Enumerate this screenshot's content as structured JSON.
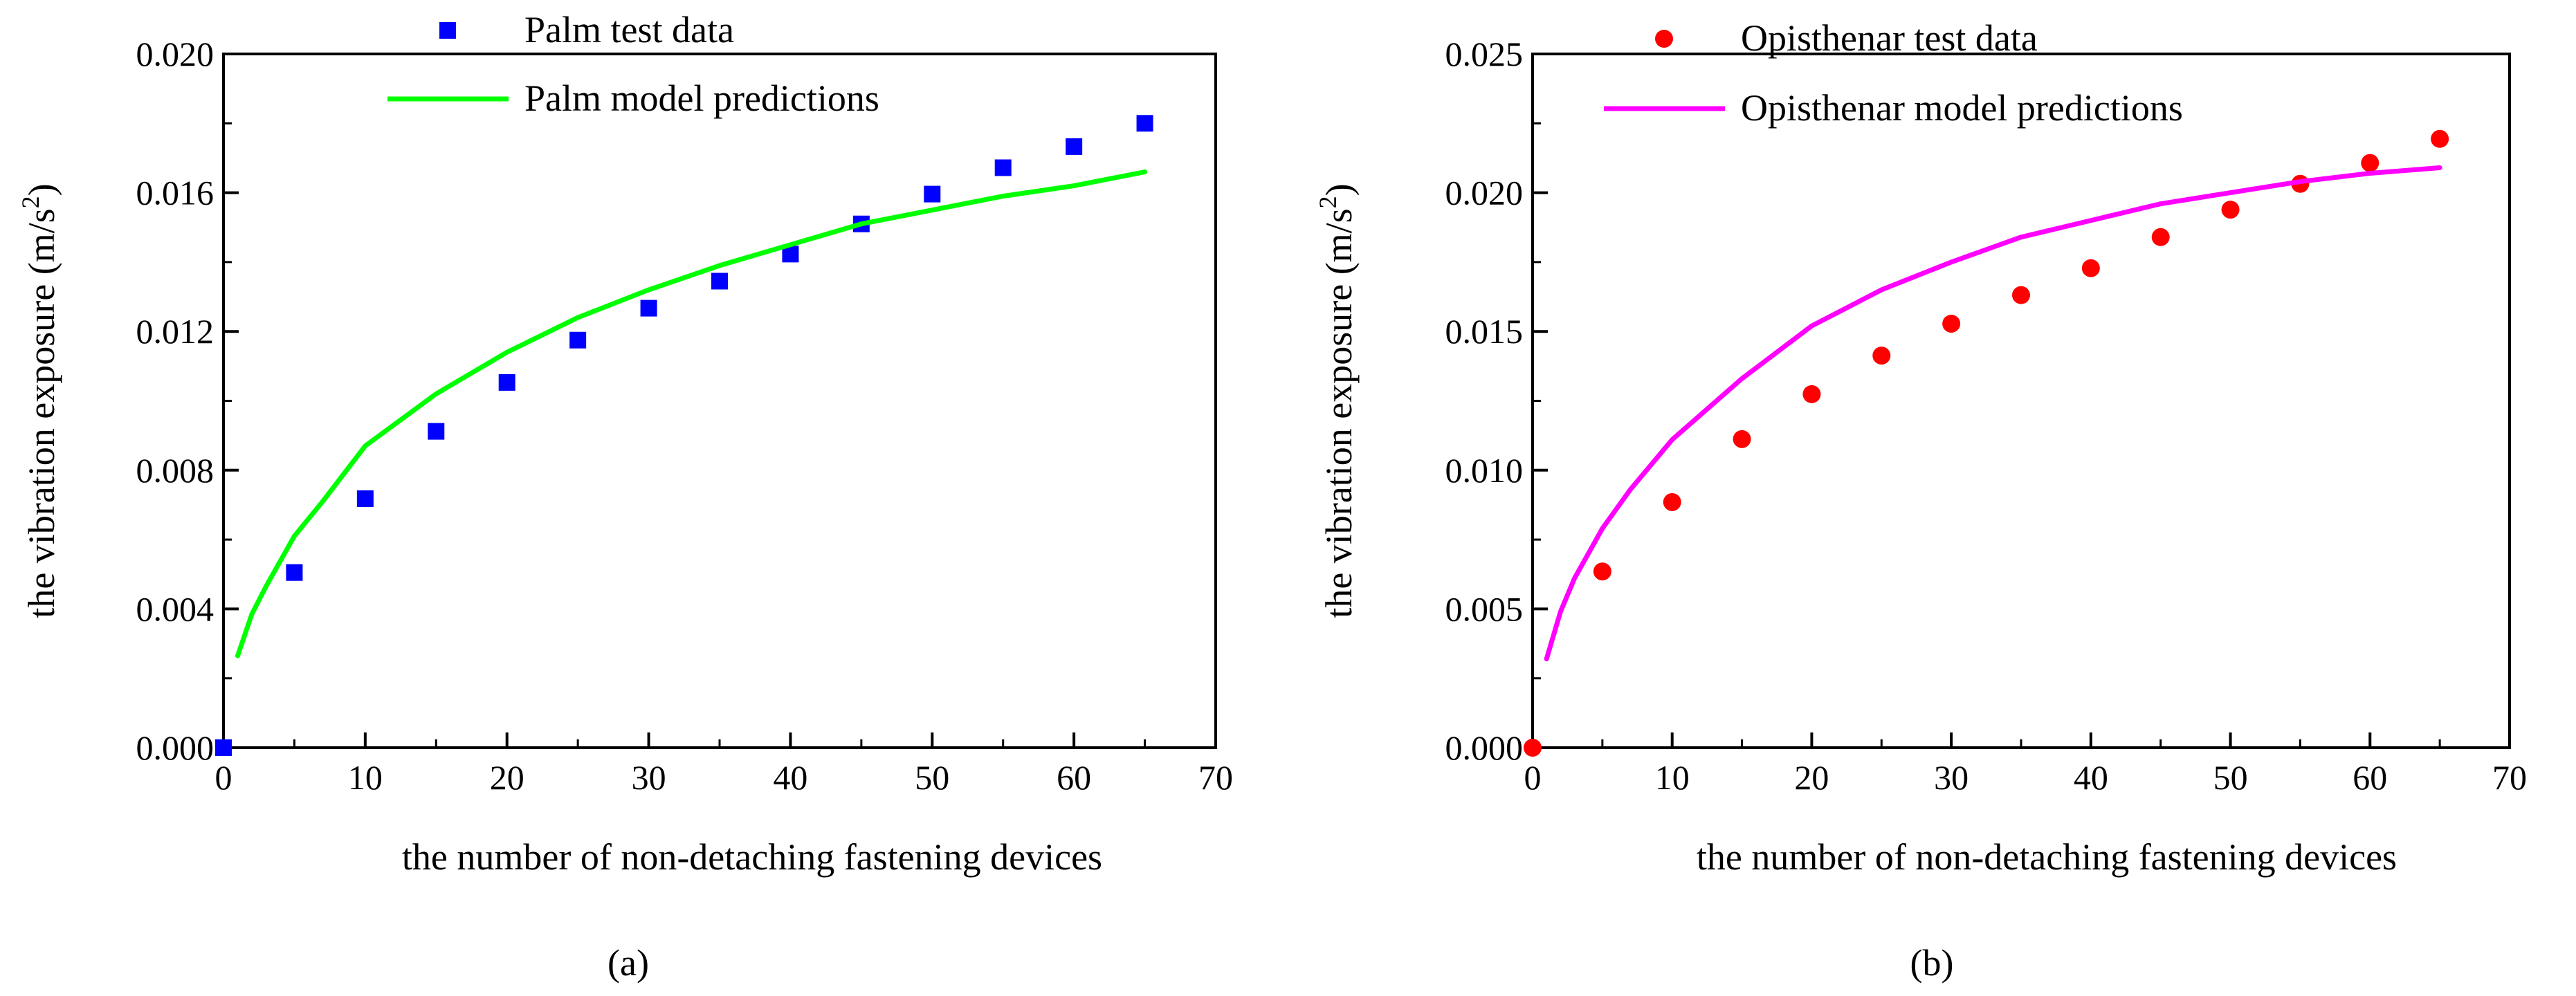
{
  "chart_data": [
    {
      "type": "scatter",
      "panel_label": "(a)",
      "xlabel": "the number of non-detaching fastening devices",
      "ylabel": "the vibration exposure (m/s",
      "ylabel_sup": "2",
      "ylabel_tail": ")",
      "xlim": [
        0,
        70
      ],
      "ylim": [
        0.0,
        0.02
      ],
      "x_ticks": [
        0,
        10,
        20,
        30,
        40,
        50,
        60,
        70
      ],
      "x_tick_labels": [
        "0",
        "10",
        "20",
        "30",
        "40",
        "50",
        "60",
        "70"
      ],
      "y_ticks": [
        0.0,
        0.004,
        0.008,
        0.012,
        0.016,
        0.02
      ],
      "y_tick_labels": [
        "0.000",
        "0.004",
        "0.008",
        "0.012",
        "0.016",
        "0.020"
      ],
      "legend_position": "top",
      "series": [
        {
          "name": "Palm test data",
          "kind": "points",
          "marker": "square",
          "color": "#0000ff",
          "x": [
            0,
            5,
            10,
            15,
            20,
            25,
            30,
            35,
            40,
            45,
            50,
            55,
            60,
            65
          ],
          "y": [
            0.0,
            0.00505,
            0.00718,
            0.00912,
            0.01053,
            0.01175,
            0.01267,
            0.01345,
            0.01423,
            0.0151,
            0.01596,
            0.01672,
            0.01733,
            0.018
          ]
        },
        {
          "name": "Palm model predictions",
          "kind": "line",
          "color": "#00ff00",
          "x": [
            1,
            2,
            3,
            5,
            7,
            10,
            15,
            20,
            25,
            30,
            35,
            40,
            45,
            50,
            55,
            60,
            65
          ],
          "y": [
            0.00265,
            0.00385,
            0.00465,
            0.0061,
            0.0071,
            0.0087,
            0.0102,
            0.0114,
            0.0124,
            0.0132,
            0.0139,
            0.0145,
            0.0151,
            0.0155,
            0.0159,
            0.0162,
            0.0166
          ]
        }
      ]
    },
    {
      "type": "scatter",
      "panel_label": "(b)",
      "xlabel": "the number of non-detaching fastening devices",
      "ylabel": "the vibration exposure (m/s",
      "ylabel_sup": "2",
      "ylabel_tail": ")",
      "xlim": [
        0,
        70
      ],
      "ylim": [
        0.0,
        0.025
      ],
      "x_ticks": [
        0,
        10,
        20,
        30,
        40,
        50,
        60,
        70
      ],
      "x_tick_labels": [
        "0",
        "10",
        "20",
        "30",
        "40",
        "50",
        "60",
        "70"
      ],
      "y_ticks": [
        0.0,
        0.005,
        0.01,
        0.015,
        0.02,
        0.025
      ],
      "y_tick_labels": [
        "0.000",
        "0.005",
        "0.010",
        "0.015",
        "0.020",
        "0.025"
      ],
      "legend_position": "top",
      "series": [
        {
          "name": "Opisthenar test data",
          "kind": "points",
          "marker": "circle",
          "color": "#ff0000",
          "x": [
            0,
            5,
            10,
            15,
            20,
            25,
            30,
            35,
            40,
            45,
            50,
            55,
            60,
            65
          ],
          "y": [
            0.0,
            0.00635,
            0.00885,
            0.01112,
            0.01274,
            0.01413,
            0.01528,
            0.01631,
            0.01728,
            0.0184,
            0.01939,
            0.02032,
            0.02107,
            0.02194
          ]
        },
        {
          "name": "Opisthenar model predictions",
          "kind": "line",
          "color": "#ff00ff",
          "x": [
            1,
            2,
            3,
            5,
            7,
            10,
            15,
            20,
            25,
            30,
            35,
            40,
            45,
            50,
            55,
            60,
            65
          ],
          "y": [
            0.0032,
            0.0049,
            0.0061,
            0.0079,
            0.0093,
            0.0111,
            0.0133,
            0.0152,
            0.0165,
            0.0175,
            0.0184,
            0.019,
            0.0196,
            0.02,
            0.0204,
            0.0207,
            0.0209
          ]
        }
      ]
    }
  ]
}
